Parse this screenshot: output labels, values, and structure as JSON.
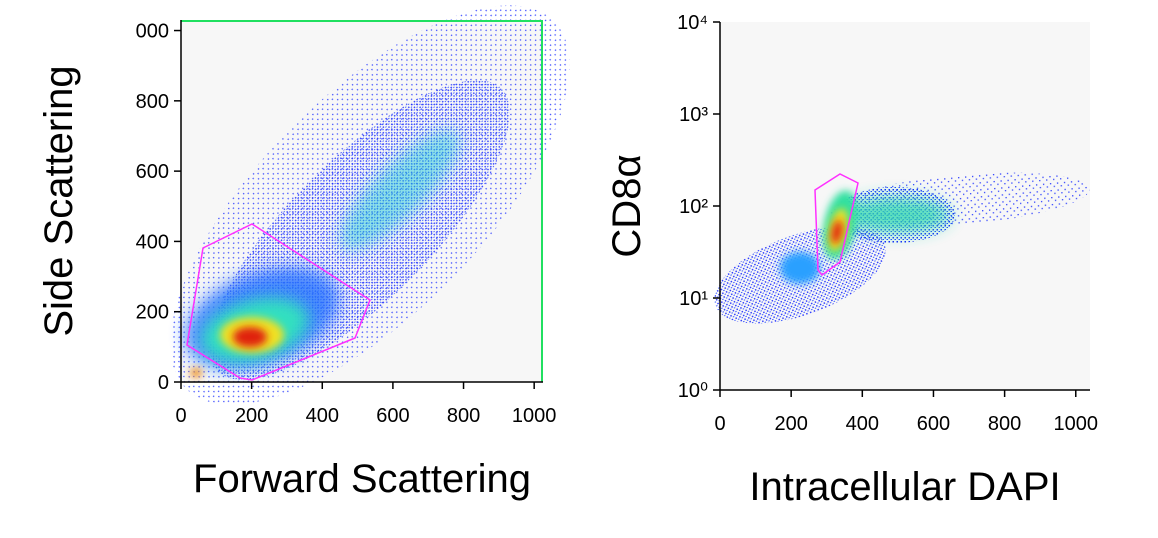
{
  "chart_data": [
    {
      "type": "scatter",
      "x_label": "Forward Scattering",
      "y_label": "Side Scattering",
      "xlim": [
        0,
        1025
      ],
      "ylim": [
        0,
        1030
      ],
      "xticks": [
        0,
        200,
        400,
        600,
        800,
        1000
      ],
      "yticks": [
        0,
        200,
        400,
        600,
        800,
        {
          "value": 1000,
          "label": "000"
        }
      ],
      "log_scale": false
    },
    {
      "type": "scatter",
      "x_label": "Intracellular DAPI",
      "y_label": "CD8α",
      "xlim": [
        0,
        1040
      ],
      "ylim": [
        1,
        10000
      ],
      "xticks": [
        0,
        200,
        400,
        600,
        800,
        1000
      ],
      "yticks": [
        {
          "value": 1,
          "label": "10⁰"
        },
        {
          "value": 10,
          "label": "10¹"
        },
        {
          "value": 100,
          "label": "10²"
        },
        {
          "value": 1000,
          "label": "10³"
        },
        {
          "value": 10000,
          "label": "10⁴"
        }
      ],
      "log_scale": true
    }
  ]
}
